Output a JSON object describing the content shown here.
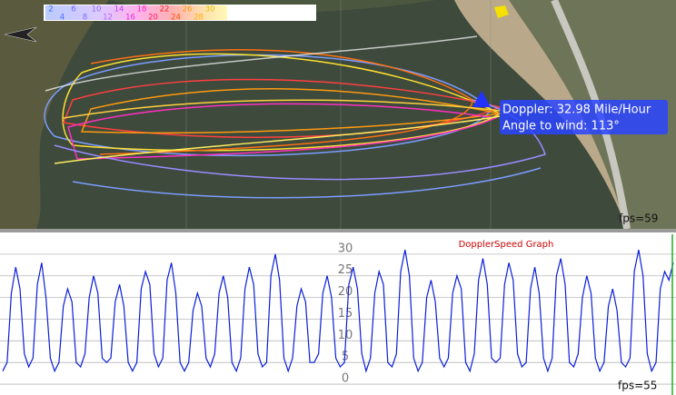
{
  "map": {
    "speed_legend": [
      2,
      4,
      6,
      8,
      10,
      12,
      14,
      16,
      18,
      20,
      22,
      24,
      26,
      28,
      30
    ],
    "info_speed": "Doppler: 32.98 Mile/Hour",
    "info_angle": "Angle to wind: 113°",
    "fps": "fps=59"
  },
  "chart_data": {
    "type": "line",
    "title": "DopplerSpeed Graph",
    "fps": "fps=55",
    "ylim": [
      -2.5,
      35
    ],
    "yticks": [
      0,
      5,
      10,
      15,
      20,
      25,
      30
    ],
    "grid": true,
    "series": [
      {
        "name": "DopplerSpeed",
        "color": "#0a1fd8",
        "values": [
          3,
          5,
          21,
          27,
          22,
          7,
          4,
          6,
          23,
          28,
          20,
          6,
          3,
          5,
          18,
          22,
          19,
          5,
          4,
          7,
          20,
          25,
          21,
          6,
          5,
          6,
          19,
          23,
          18,
          5,
          3,
          5,
          22,
          26,
          23,
          7,
          4,
          6,
          24,
          28,
          21,
          5,
          3,
          5,
          17,
          21,
          18,
          6,
          4,
          7,
          21,
          25,
          20,
          5,
          3,
          6,
          22,
          27,
          23,
          7,
          4,
          5,
          25,
          30,
          24,
          6,
          3,
          6,
          18,
          22,
          19,
          5,
          5,
          7,
          21,
          25,
          20,
          6,
          4,
          5,
          23,
          27,
          22,
          7,
          3,
          6,
          21,
          26,
          23,
          5,
          4,
          7,
          26,
          31,
          25,
          6,
          3,
          5,
          20,
          24,
          19,
          6,
          4,
          6,
          21,
          25,
          22,
          5,
          3,
          7,
          24,
          29,
          23,
          6,
          5,
          6,
          23,
          28,
          24,
          7,
          4,
          5,
          22,
          27,
          21,
          6,
          3,
          6,
          25,
          29,
          23,
          5,
          4,
          7,
          20,
          25,
          21,
          6,
          3,
          5,
          18,
          22,
          17,
          5,
          4,
          6,
          26,
          31,
          25,
          7,
          3,
          5,
          22,
          26,
          24,
          28
        ]
      }
    ]
  }
}
